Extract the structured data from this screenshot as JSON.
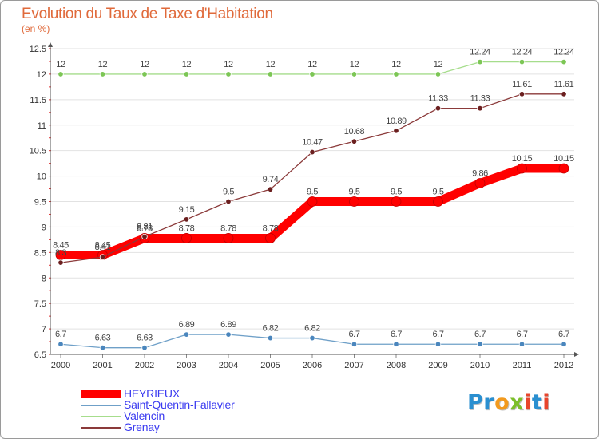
{
  "header": {
    "title": "Evolution du Taux de Taxe d'Habitation",
    "unit": "(en %)"
  },
  "logo": {
    "text": "Proxiti",
    "letter_colors": [
      "#2a8fd0",
      "#2a8fd0",
      "#f29a1e",
      "#7cbf2a",
      "#e8452c",
      "#2a8fd0",
      "#e8452c"
    ]
  },
  "chart_data": {
    "type": "line",
    "x": [
      "2000",
      "2001",
      "2002",
      "2003",
      "2004",
      "2005",
      "2006",
      "2007",
      "2008",
      "2009",
      "2010",
      "2011",
      "2012"
    ],
    "y_ticks": [
      "6.5",
      "7",
      "7.5",
      "8",
      "8.5",
      "9",
      "9.5",
      "10",
      "10.5",
      "11",
      "11.5",
      "12",
      "12.5"
    ],
    "ylim": [
      6.5,
      12.5
    ],
    "grid": "horizontal",
    "legend_position": "bottom-left",
    "series": [
      {
        "name": "HEYRIEUX",
        "color": "#ff0000",
        "marker_color": "#ff0000",
        "emphasis": "thick",
        "values": [
          8.45,
          8.45,
          8.78,
          8.78,
          8.78,
          8.78,
          9.5,
          9.5,
          9.5,
          9.5,
          9.86,
          10.15,
          10.15
        ],
        "labels": [
          "8.45",
          "8.45",
          "8.78",
          "8.78",
          "8.78",
          "8.78",
          "9.5",
          "9.5",
          "9.5",
          "9.5",
          "9.86",
          "10.15",
          "10.15"
        ]
      },
      {
        "name": "Saint-Quentin-Fallavier",
        "color": "#6fa0c8",
        "marker_color": "#4a86bd",
        "emphasis": "thin",
        "values": [
          6.7,
          6.63,
          6.63,
          6.89,
          6.89,
          6.82,
          6.82,
          6.7,
          6.7,
          6.7,
          6.7,
          6.7,
          6.7
        ],
        "labels": [
          "6.7",
          "6.63",
          "6.63",
          "6.89",
          "6.89",
          "6.82",
          "6.82",
          "6.7",
          "6.7",
          "6.7",
          "6.7",
          "6.7",
          "6.7"
        ]
      },
      {
        "name": "Valencin",
        "color": "#a6dd8c",
        "marker_color": "#7cc655",
        "emphasis": "thin",
        "values": [
          12,
          12,
          12,
          12,
          12,
          12,
          12,
          12,
          12,
          12,
          12.24,
          12.24,
          12.24
        ],
        "labels": [
          "12",
          "12",
          "12",
          "12",
          "12",
          "12",
          "12",
          "12",
          "12",
          "12",
          "12.24",
          "12.24",
          "12.24"
        ]
      },
      {
        "name": "Grenay",
        "color": "#8b3a3a",
        "marker_color": "#6b1f1f",
        "emphasis": "thin",
        "values": [
          8.3,
          8.41,
          8.81,
          9.15,
          9.5,
          9.74,
          10.47,
          10.68,
          10.89,
          11.33,
          11.33,
          11.61,
          11.61
        ],
        "labels": [
          "8.3",
          "8.41",
          "8.81",
          "9.15",
          "9.5",
          "9.74",
          "10.47",
          "10.68",
          "10.89",
          "11.33",
          "11.33",
          "11.61",
          "11.61"
        ]
      }
    ]
  }
}
